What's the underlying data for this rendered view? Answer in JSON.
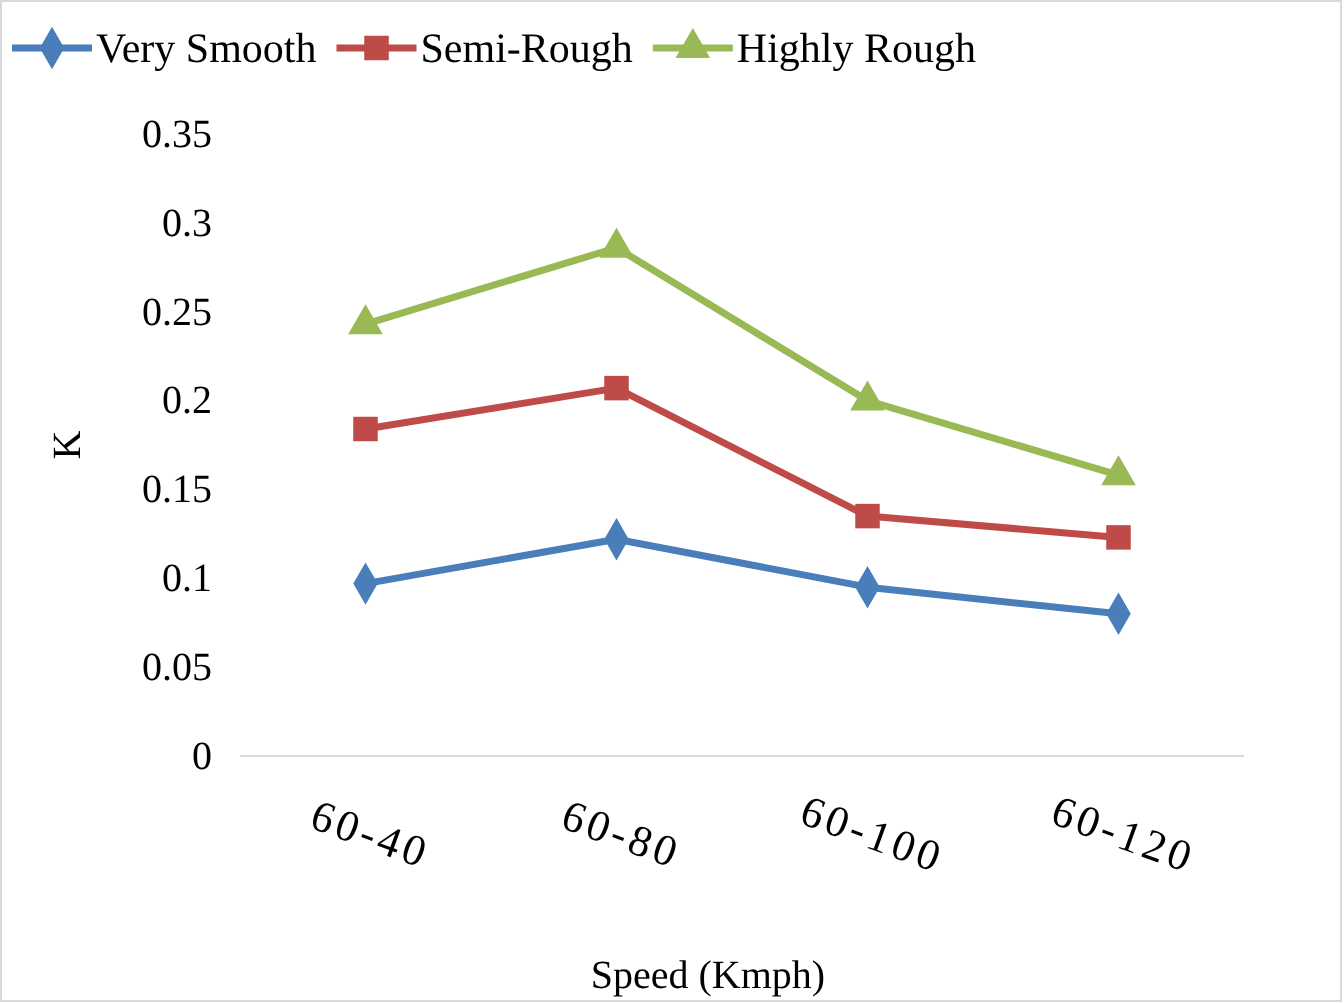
{
  "chart_data": {
    "type": "line",
    "xlabel": "Speed (Kmph)",
    "ylabel": "K",
    "categories": [
      "60-40",
      "60-80",
      "60-100",
      "60-120"
    ],
    "series": [
      {
        "name": "Very Smooth",
        "color": "#4a7ebb",
        "marker": "diamond",
        "values": [
          0.097,
          0.122,
          0.095,
          0.08
        ]
      },
      {
        "name": "Semi-Rough",
        "color": "#be4b48",
        "marker": "square",
        "values": [
          0.184,
          0.207,
          0.135,
          0.123
        ]
      },
      {
        "name": "Highly Rough",
        "color": "#98b954",
        "marker": "triangle",
        "values": [
          0.243,
          0.286,
          0.2,
          0.158
        ]
      }
    ],
    "ylim": [
      0,
      0.35
    ],
    "yticks": [
      0,
      0.05,
      0.1,
      0.15,
      0.2,
      0.25,
      0.3,
      0.35
    ],
    "grid": false,
    "legend": "top",
    "line_style": "solid"
  }
}
